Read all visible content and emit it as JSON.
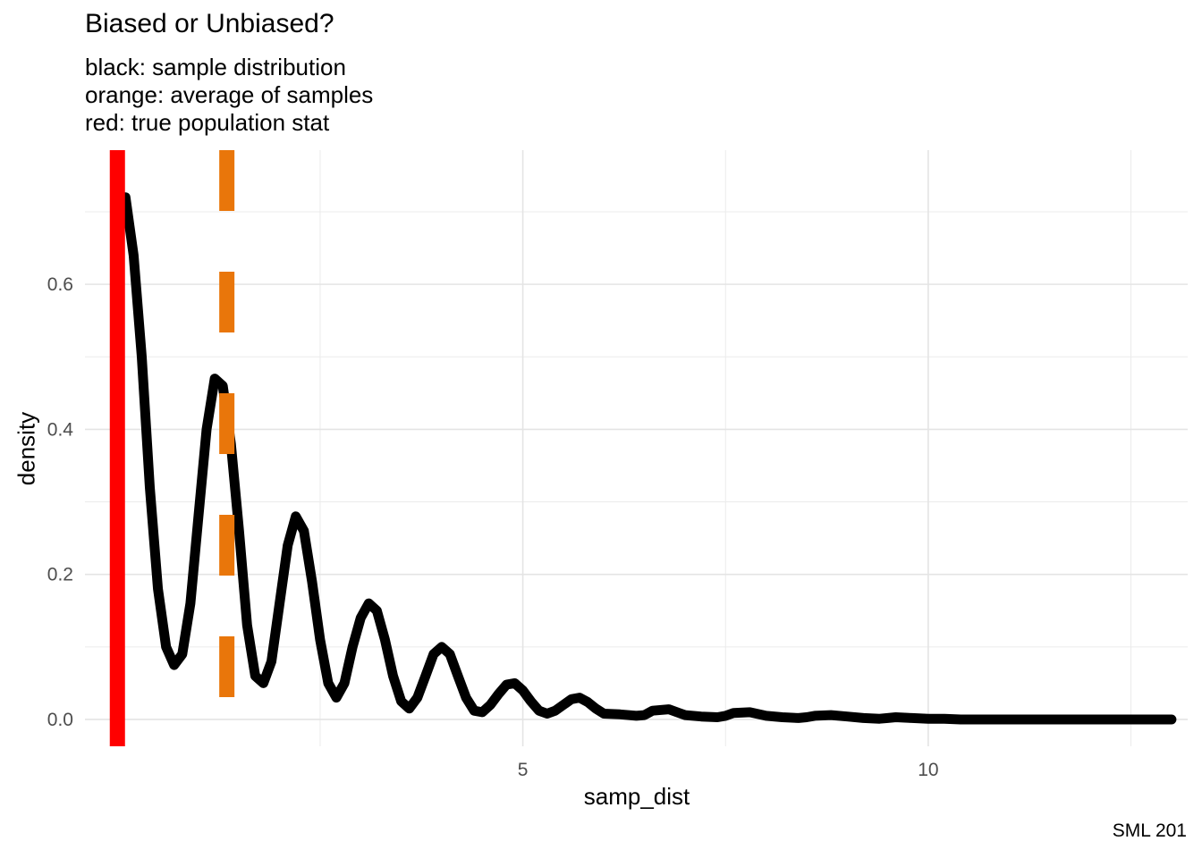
{
  "chart_data": {
    "type": "line",
    "title": "Biased or Unbiased?",
    "subtitle": [
      "black: sample distribution",
      "orange: average of samples",
      "red: true population stat"
    ],
    "caption": "SML 201",
    "xlabel": "samp_dist",
    "ylabel": "density",
    "xlim": [
      -0.4,
      13.2
    ],
    "ylim": [
      -0.037,
      0.785
    ],
    "xticks": [
      5,
      10
    ],
    "xtick_labels": [
      "5",
      "10"
    ],
    "yticks": [
      0.0,
      0.2,
      0.4,
      0.6
    ],
    "ytick_labels": [
      "0.0",
      "0.2",
      "0.4",
      "0.6"
    ],
    "grid": true,
    "series": [
      {
        "color": "#000000",
        "style": "solid",
        "x": [
          0.1,
          0.2,
          0.3,
          0.4,
          0.5,
          0.6,
          0.7,
          0.8,
          0.9,
          1.0,
          1.1,
          1.2,
          1.3,
          1.4,
          1.5,
          1.6,
          1.7,
          1.8,
          1.9,
          2.0,
          2.1,
          2.2,
          2.3,
          2.4,
          2.5,
          2.6,
          2.7,
          2.8,
          2.9,
          3.0,
          3.1,
          3.2,
          3.3,
          3.4,
          3.5,
          3.6,
          3.7,
          3.8,
          3.9,
          4.0,
          4.1,
          4.2,
          4.3,
          4.4,
          4.5,
          4.6,
          4.7,
          4.8,
          4.9,
          5.0,
          5.1,
          5.2,
          5.3,
          5.4,
          5.5,
          5.6,
          5.7,
          5.8,
          5.9,
          6.0,
          6.2,
          6.4,
          6.5,
          6.6,
          6.8,
          7.0,
          7.2,
          7.4,
          7.5,
          7.6,
          7.8,
          8.0,
          8.2,
          8.4,
          8.5,
          8.6,
          8.8,
          9.0,
          9.2,
          9.4,
          9.5,
          9.6,
          9.8,
          10.0,
          10.2,
          10.4,
          10.5,
          11.0,
          11.5,
          12.0,
          12.5,
          13.0
        ],
        "y": [
          0.72,
          0.64,
          0.5,
          0.32,
          0.18,
          0.1,
          0.075,
          0.09,
          0.16,
          0.28,
          0.4,
          0.47,
          0.46,
          0.38,
          0.26,
          0.13,
          0.06,
          0.05,
          0.08,
          0.16,
          0.24,
          0.28,
          0.26,
          0.19,
          0.11,
          0.05,
          0.03,
          0.05,
          0.1,
          0.14,
          0.16,
          0.15,
          0.11,
          0.06,
          0.025,
          0.015,
          0.03,
          0.06,
          0.09,
          0.1,
          0.09,
          0.06,
          0.03,
          0.012,
          0.01,
          0.02,
          0.035,
          0.048,
          0.05,
          0.04,
          0.025,
          0.012,
          0.008,
          0.012,
          0.02,
          0.028,
          0.03,
          0.024,
          0.015,
          0.008,
          0.007,
          0.005,
          0.006,
          0.012,
          0.014,
          0.006,
          0.004,
          0.003,
          0.005,
          0.009,
          0.01,
          0.005,
          0.003,
          0.002,
          0.003,
          0.005,
          0.006,
          0.004,
          0.002,
          0.001,
          0.002,
          0.003,
          0.002,
          0.001,
          0.001,
          0.0,
          0.0,
          0.0,
          0.0,
          0.0,
          0.0,
          0.0
        ]
      }
    ],
    "vlines": [
      {
        "x": 0.0,
        "color": "#ff0000",
        "style": "solid"
      },
      {
        "x": 1.35,
        "color": "#e9760a",
        "style": "dashed"
      }
    ]
  }
}
